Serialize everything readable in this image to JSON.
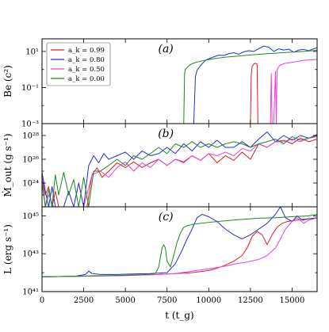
{
  "chart_data": [
    {
      "id": "a",
      "type": "line",
      "panel_label": "(a)",
      "ylabel": "Be (c²)",
      "yscale": "log",
      "ylim": [
        0.001,
        50
      ],
      "yticks": [
        0.001,
        0.1,
        10
      ],
      "ytick_labels": [
        "10⁻³",
        "10⁻¹",
        "10¹"
      ],
      "xlim": [
        0,
        16500
      ],
      "legend": {
        "placement": "top-left",
        "entries": [
          {
            "label": "a_k = 0.99",
            "color": "#e41a1c"
          },
          {
            "label": "a_k = 0.80",
            "color": "#1f2fd8"
          },
          {
            "label": "a_k = 0.50",
            "color": "#e83fe0"
          },
          {
            "label": "a_k = 0.00",
            "color": "#1a8a1a"
          }
        ]
      },
      "series": [
        {
          "name": "a_k = 0.99",
          "color": "#e41a1c",
          "x": [
            12400,
            12500,
            12550,
            12600,
            12700,
            12800,
            12900,
            12950,
            13000,
            13050
          ],
          "y": [
            0.001,
            0.001,
            0.5,
            1.5,
            2.0,
            2.2,
            2.0,
            0.001,
            0.001,
            0.001
          ]
        },
        {
          "name": "a_k = 0.80",
          "color": "#1f2fd8",
          "x": [
            9000,
            9100,
            9200,
            9300,
            9500,
            9700,
            9900,
            10100,
            10300,
            10600,
            10900,
            11200,
            11500,
            11800,
            12100,
            12400,
            12700,
            13000,
            13300,
            13600,
            13900,
            14200,
            14500,
            14800,
            15100,
            15400,
            15700,
            16000,
            16300,
            16500
          ],
          "y": [
            0.001,
            0.001,
            0.4,
            0.9,
            1.6,
            2.6,
            3.6,
            4.2,
            5.0,
            6.2,
            6.0,
            7.5,
            8.5,
            7.0,
            9.5,
            11.0,
            10.0,
            14.0,
            20.0,
            17.0,
            10.0,
            14.0,
            12.0,
            13.5,
            9.0,
            12.0,
            13.0,
            11.0,
            14.0,
            16.0
          ]
        },
        {
          "name": "a_k = 0.50",
          "color": "#e83fe0",
          "x": [
            13600,
            13700,
            13750,
            13800,
            13900,
            14000,
            14050,
            14100,
            14200,
            14300,
            14500,
            14700,
            14900,
            15100,
            15300,
            15500,
            15700,
            15900,
            16100,
            16300,
            16500
          ],
          "y": [
            0.001,
            0.001,
            0.6,
            0.001,
            0.001,
            0.8,
            0.001,
            1.0,
            1.4,
            1.8,
            2.1,
            2.3,
            2.4,
            2.6,
            2.8,
            3.0,
            3.2,
            3.3,
            3.4,
            3.5,
            3.6
          ]
        },
        {
          "name": "a_k = 0.00",
          "color": "#1a8a1a",
          "x": [
            8400,
            8500,
            8550,
            8600,
            8800,
            9000,
            9300,
            9600,
            9900,
            10200,
            10600,
            11000,
            11500,
            12000,
            12500,
            13000,
            13500,
            14000,
            14500,
            15000,
            15500,
            16000,
            16500
          ],
          "y": [
            0.001,
            0.001,
            0.6,
            1.0,
            1.6,
            2.1,
            2.6,
            3.0,
            3.4,
            3.8,
            4.3,
            4.8,
            5.3,
            5.8,
            6.4,
            6.9,
            7.5,
            8.0,
            8.6,
            9.2,
            9.8,
            10.5,
            11.5
          ]
        }
      ]
    },
    {
      "id": "b",
      "type": "line",
      "panel_label": "(b)",
      "ylabel": "Ṁ_out (g s⁻¹)",
      "yscale": "log",
      "ylim": [
        1e+22,
        1e+29
      ],
      "yticks": [
        1e+24,
        1e+26,
        1e+28
      ],
      "ytick_labels": [
        "10²⁴",
        "10²⁶",
        "10²⁸"
      ],
      "xlim": [
        0,
        16500
      ],
      "series": [
        {
          "name": "a_k = 0.99",
          "color": "#e41a1c",
          "x": [
            0,
            200,
            400,
            600,
            800,
            1000,
            1200,
            1500,
            1800,
            2100,
            2400,
            2700,
            3000,
            3300,
            3600,
            4000,
            4500,
            5000,
            5500,
            6000,
            6500,
            7000,
            7500,
            8000,
            8500,
            9000,
            9500,
            10000,
            10500,
            11000,
            11500,
            12000,
            12500,
            13000,
            13500,
            14000,
            14500,
            15000,
            15500,
            16000,
            16500
          ],
          "y": [
            3e+24,
            1e+23,
            5e+23,
            1e+22,
            2e+23,
            1e+22,
            1e+22,
            1e+22,
            1e+22,
            1e+22,
            1e+22,
            1e+22,
            5e+24,
            2e+25,
            3e+24,
            1e+25,
            5e+25,
            2e+25,
            6e+25,
            2e+25,
            5e+25,
            1e+26,
            3e+25,
            1e+26,
            6e+25,
            2e+26,
            8e+25,
            3e+26,
            5e+25,
            2e+26,
            8e+25,
            4e+26,
            1e+26,
            2e+27,
            1e+27,
            3e+27,
            4e+27,
            2e+27,
            6e+27,
            3e+27,
            5e+27
          ]
        },
        {
          "name": "a_k = 0.80",
          "color": "#1f2fd8",
          "x": [
            0,
            200,
            400,
            600,
            800,
            1000,
            1300,
            1600,
            1900,
            2200,
            2500,
            2800,
            3100,
            3400,
            3700,
            4000,
            4500,
            5000,
            5500,
            6000,
            6500,
            7000,
            7500,
            8000,
            8500,
            9000,
            9500,
            10000,
            10500,
            11000,
            11500,
            12000,
            12500,
            13000,
            13500,
            14000,
            14500,
            15000,
            15500,
            16000,
            16500
          ],
          "y": [
            8e+24,
            2e+23,
            1e+22,
            5e+23,
            1e+22,
            1e+22,
            1e+22,
            2e+23,
            1e+22,
            1e+24,
            1e+22,
            3e+25,
            2e+26,
            5e+25,
            3e+26,
            1e+26,
            2e+26,
            4e+26,
            1e+26,
            5e+26,
            2e+26,
            3e+26,
            1e+27,
            3e+26,
            2e+27,
            5e+26,
            3e+27,
            1e+27,
            4e+27,
            1e+27,
            1e+27,
            3e+27,
            1e+27,
            5e+27,
            2e+28,
            3e+27,
            1e+28,
            4e+27,
            1e+28,
            6e+27,
            1.2e+28
          ]
        },
        {
          "name": "a_k = 0.50",
          "color": "#e83fe0",
          "x": [
            0,
            200,
            400,
            700,
            1000,
            1500,
            2000,
            2500,
            3000,
            3500,
            4000,
            4500,
            5000,
            5500,
            6000,
            6500,
            7000,
            7500,
            8000,
            8500,
            9000,
            9500,
            10000,
            10500,
            11000,
            11500,
            12000,
            12500,
            13000,
            13500,
            14000,
            14500,
            15000,
            15500,
            16000,
            16500
          ],
          "y": [
            4e+24,
            1e+22,
            1e+23,
            1e+22,
            1e+22,
            1e+22,
            1e+22,
            1e+22,
            5e+24,
            1e+25,
            3e+24,
            2e+25,
            6e+25,
            1e+25,
            5e+25,
            2e+25,
            1e+26,
            3e+25,
            1e+26,
            5e+25,
            2e+26,
            8e+25,
            3e+26,
            2e+26,
            4e+26,
            2e+26,
            8e+26,
            5e+26,
            2e+27,
            1e+27,
            3e+27,
            3e+27,
            5e+27,
            3e+27,
            6e+27,
            8e+27
          ]
        },
        {
          "name": "a_k = 0.00",
          "color": "#1a8a1a",
          "x": [
            0,
            200,
            400,
            600,
            800,
            1000,
            1300,
            1600,
            1900,
            2200,
            2500,
            2800,
            3100,
            3500,
            4000,
            4500,
            5000,
            5500,
            6000,
            6500,
            7000,
            7500,
            8000,
            8500,
            9000,
            9500,
            10000,
            10500,
            11000,
            11500,
            12000,
            12500,
            13000,
            13500,
            14000,
            14500,
            15000,
            15500,
            16000,
            16500
          ],
          "y": [
            1e+24,
            1e+22,
            3e+23,
            1e+22,
            5e+24,
            1e+23,
            8e+24,
            1e+23,
            2e+24,
            1e+22,
            3e+24,
            1e+22,
            1e+25,
            1e+25,
            3e+25,
            1e+26,
            3e+25,
            2e+26,
            1e+26,
            3e+26,
            1e+27,
            3e+26,
            2e+27,
            1e+27,
            3e+27,
            1e+27,
            2e+27,
            1e+27,
            2e+27,
            3e+27,
            2e+27,
            1e+27,
            2e+27,
            3e+27,
            5e+27,
            2e+27,
            8e+27,
            4e+27,
            6e+27,
            1e+28
          ]
        }
      ]
    },
    {
      "id": "c",
      "type": "line",
      "panel_label": "(c)",
      "ylabel": "L (erg s⁻¹)",
      "yscale": "log",
      "ylim": [
        1e+41,
        3e+45
      ],
      "yticks": [
        1e+41,
        1e+43,
        1e+45
      ],
      "ytick_labels": [
        "10⁴¹",
        "10⁴³",
        "10⁴⁵"
      ],
      "xlabel": "t (t_g)",
      "xlim": [
        0,
        16500
      ],
      "xticks": [
        0,
        2500,
        5000,
        7500,
        10000,
        12500,
        15000
      ],
      "xtick_labels": [
        "0",
        "2500",
        "5000",
        "7500",
        "10000",
        "12500",
        "15000"
      ],
      "series": [
        {
          "name": "a_k = 0.99",
          "color": "#e41a1c",
          "x": [
            0,
            1000,
            2000,
            3000,
            4000,
            5000,
            6000,
            7000,
            8000,
            9000,
            10000,
            10500,
            11000,
            11500,
            12000,
            12300,
            12600,
            12900,
            13200,
            13500,
            13800,
            14100,
            14400,
            14700,
            15000,
            15300,
            15600,
            16000,
            16500
          ],
          "y": [
            6e+41,
            6.2e+41,
            6.4e+41,
            6.6e+41,
            6.8e+41,
            7e+41,
            7.5e+41,
            8e+41,
            9e+41,
            1e+42,
            1.3e+42,
            1.7e+42,
            2.5e+42,
            4e+42,
            8e+42,
            2e+43,
            8e+43,
            1.5e+44,
            1e+44,
            3e+43,
            1e+44,
            2.5e+44,
            4e+44,
            5e+44,
            5.5e+44,
            6e+44,
            6.5e+44,
            7e+44,
            7.5e+44
          ]
        },
        {
          "name": "a_k = 0.80",
          "color": "#1f2fd8",
          "x": [
            0,
            1000,
            2000,
            2600,
            2800,
            3000,
            3500,
            4500,
            5500,
            6500,
            7500,
            8000,
            8400,
            8700,
            9000,
            9300,
            9600,
            10000,
            10500,
            11000,
            11500,
            12000,
            12500,
            13000,
            13500,
            14000,
            14300,
            14600,
            15000,
            15300,
            15600,
            16000,
            16500
          ],
          "y": [
            6e+41,
            6.2e+41,
            6.5e+41,
            8e+41,
            1.2e+42,
            9e+41,
            8e+41,
            8e+41,
            8.5e+41,
            9e+41,
            1e+42,
            3e+42,
            1.5e+43,
            6e+43,
            2e+44,
            8e+44,
            1.2e+45,
            9e+44,
            5e+44,
            2e+44,
            1e+44,
            6e+43,
            1e+44,
            2e+44,
            4e+44,
            1.2e+45,
            3e+45,
            8e+44,
            5e+44,
            1e+45,
            6e+44,
            7e+44,
            8e+44
          ]
        },
        {
          "name": "a_k = 0.50",
          "color": "#e83fe0",
          "x": [
            0,
            1000,
            2000,
            3000,
            4000,
            5000,
            6000,
            7000,
            8000,
            9000,
            10000,
            11000,
            11500,
            12000,
            12500,
            13000,
            13500,
            14000,
            14300,
            14600,
            15000,
            15300,
            15700,
            16000,
            16300,
            16500
          ],
          "y": [
            6e+41,
            6.2e+41,
            6.4e+41,
            6.6e+41,
            6.9e+41,
            7.2e+41,
            7.6e+41,
            8e+41,
            9e+41,
            1.2e+42,
            1.6e+42,
            2.2e+42,
            2.8e+42,
            3.3e+42,
            4e+42,
            5e+42,
            8e+42,
            2e+43,
            6e+43,
            2e+44,
            5e+44,
            8e+44,
            4e+44,
            6e+44,
            7e+44,
            8e+44
          ]
        },
        {
          "name": "a_k = 0.00",
          "color": "#1a8a1a",
          "x": [
            0,
            1000,
            2000,
            3000,
            4000,
            5000,
            6000,
            6800,
            7000,
            7200,
            7300,
            7400,
            7500,
            7700,
            7900,
            8100,
            8300,
            8500,
            8700,
            9000,
            9500,
            10000,
            10500,
            11000,
            11500,
            12000,
            13000,
            14000,
            15000,
            16000,
            16500
          ],
          "y": [
            6e+41,
            6.2e+41,
            6.5e+41,
            6.8e+41,
            7e+41,
            7.3e+41,
            7.8e+41,
            9e+41,
            2e+42,
            2e+43,
            3e+43,
            2e+43,
            4e+42,
            2e+42,
            8e+42,
            4e+43,
            1.2e+44,
            2.5e+44,
            3e+44,
            3.5e+44,
            4e+44,
            4.5e+44,
            5e+44,
            5.5e+44,
            6e+44,
            6.5e+44,
            7.5e+44,
            8e+44,
            9e+44,
            1e+45,
            1.2e+45
          ]
        }
      ]
    }
  ]
}
